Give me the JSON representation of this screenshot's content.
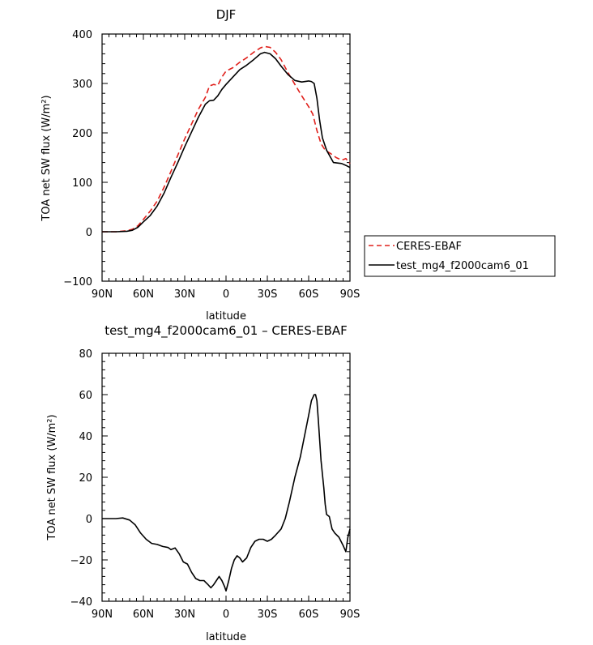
{
  "chart_data": [
    {
      "type": "line",
      "title": "DJF",
      "xlabel": "latitude",
      "ylabel": "TOA net SW flux (W/m²)",
      "ylim": [
        -100,
        400
      ],
      "xlim": [
        -90,
        90
      ],
      "yticks": [
        -100,
        0,
        100,
        200,
        300,
        400
      ],
      "xticks": [
        {
          "v": -90,
          "label": "90N"
        },
        {
          "v": -60,
          "label": "60N"
        },
        {
          "v": -30,
          "label": "30N"
        },
        {
          "v": 0,
          "label": "0"
        },
        {
          "v": 30,
          "label": "30S"
        },
        {
          "v": 60,
          "label": "60S"
        },
        {
          "v": 90,
          "label": "90S"
        }
      ],
      "legend": {
        "position": "right",
        "entries": [
          "CERES-EBAF",
          "test_mg4_f2000cam6_01"
        ]
      },
      "series": [
        {
          "name": "CERES-EBAF",
          "color": "#e0201b",
          "dash": "dashed",
          "points": [
            [
              -90,
              0
            ],
            [
              -80,
              0
            ],
            [
              -72,
              2
            ],
            [
              -68,
              5
            ],
            [
              -64,
              12
            ],
            [
              -60,
              25
            ],
            [
              -55,
              42
            ],
            [
              -50,
              62
            ],
            [
              -45,
              90
            ],
            [
              -40,
              122
            ],
            [
              -35,
              155
            ],
            [
              -30,
              188
            ],
            [
              -25,
              218
            ],
            [
              -20,
              248
            ],
            [
              -15,
              272
            ],
            [
              -12,
              295
            ],
            [
              -9,
              298
            ],
            [
              -6,
              296
            ],
            [
              -3,
              313
            ],
            [
              0,
              325
            ],
            [
              5,
              332
            ],
            [
              10,
              343
            ],
            [
              15,
              352
            ],
            [
              20,
              363
            ],
            [
              25,
              372
            ],
            [
              28,
              375
            ],
            [
              32,
              373
            ],
            [
              36,
              363
            ],
            [
              40,
              348
            ],
            [
              45,
              322
            ],
            [
              50,
              298
            ],
            [
              55,
              275
            ],
            [
              60,
              253
            ],
            [
              63,
              238
            ],
            [
              66,
              205
            ],
            [
              69,
              178
            ],
            [
              72,
              165
            ],
            [
              76,
              158
            ],
            [
              80,
              150
            ],
            [
              84,
              145
            ],
            [
              87,
              148
            ],
            [
              90,
              138
            ]
          ]
        },
        {
          "name": "test_mg4_f2000cam6_01",
          "color": "#000000",
          "dash": "solid",
          "points": [
            [
              -90,
              0
            ],
            [
              -80,
              0
            ],
            [
              -72,
              1
            ],
            [
              -68,
              3
            ],
            [
              -64,
              9
            ],
            [
              -60,
              20
            ],
            [
              -55,
              33
            ],
            [
              -50,
              52
            ],
            [
              -45,
              78
            ],
            [
              -40,
              110
            ],
            [
              -35,
              140
            ],
            [
              -30,
              172
            ],
            [
              -25,
              202
            ],
            [
              -20,
              232
            ],
            [
              -15,
              258
            ],
            [
              -12,
              265
            ],
            [
              -9,
              266
            ],
            [
              -6,
              275
            ],
            [
              -3,
              288
            ],
            [
              0,
              298
            ],
            [
              5,
              313
            ],
            [
              10,
              328
            ],
            [
              15,
              337
            ],
            [
              20,
              348
            ],
            [
              25,
              360
            ],
            [
              28,
              363
            ],
            [
              32,
              360
            ],
            [
              36,
              350
            ],
            [
              40,
              335
            ],
            [
              45,
              318
            ],
            [
              50,
              306
            ],
            [
              55,
              303
            ],
            [
              60,
              305
            ],
            [
              62,
              304
            ],
            [
              64,
              300
            ],
            [
              66,
              270
            ],
            [
              68,
              225
            ],
            [
              70,
              190
            ],
            [
              73,
              165
            ],
            [
              78,
              140
            ],
            [
              84,
              138
            ],
            [
              88,
              133
            ],
            [
              90,
              130
            ]
          ]
        }
      ]
    },
    {
      "type": "line",
      "title": "test_mg4_f2000cam6_01 – CERES-EBAF",
      "xlabel": "latitude",
      "ylabel": "TOA net SW flux (W/m²)",
      "ylim": [
        -40,
        80
      ],
      "xlim": [
        -90,
        90
      ],
      "yticks": [
        -40,
        -20,
        0,
        20,
        40,
        60,
        80
      ],
      "xticks": [
        {
          "v": -90,
          "label": "90N"
        },
        {
          "v": -60,
          "label": "60N"
        },
        {
          "v": -30,
          "label": "30N"
        },
        {
          "v": 0,
          "label": "0"
        },
        {
          "v": 30,
          "label": "30S"
        },
        {
          "v": 60,
          "label": "60S"
        },
        {
          "v": 90,
          "label": "90S"
        }
      ],
      "series": [
        {
          "name": "test_mg4_f2000cam6_01 – CERES-EBAF",
          "color": "#000000",
          "dash": "solid",
          "points": [
            [
              -90,
              0
            ],
            [
              -80,
              0
            ],
            [
              -75,
              0.3
            ],
            [
              -70,
              -0.7
            ],
            [
              -66,
              -3
            ],
            [
              -62,
              -7
            ],
            [
              -58,
              -10
            ],
            [
              -54,
              -12
            ],
            [
              -50,
              -12.5
            ],
            [
              -46,
              -13.5
            ],
            [
              -42,
              -14
            ],
            [
              -40,
              -15
            ],
            [
              -37,
              -14.2
            ],
            [
              -34,
              -17
            ],
            [
              -31,
              -21
            ],
            [
              -28,
              -22
            ],
            [
              -25,
              -26
            ],
            [
              -22,
              -29
            ],
            [
              -19,
              -30
            ],
            [
              -16,
              -30
            ],
            [
              -13,
              -32
            ],
            [
              -11,
              -33.5
            ],
            [
              -9,
              -32
            ],
            [
              -7,
              -30
            ],
            [
              -5,
              -28
            ],
            [
              -3,
              -30
            ],
            [
              -1,
              -33
            ],
            [
              0,
              -35
            ],
            [
              2,
              -30
            ],
            [
              4,
              -24
            ],
            [
              6,
              -20
            ],
            [
              8,
              -18
            ],
            [
              10,
              -19
            ],
            [
              12,
              -21
            ],
            [
              15,
              -19
            ],
            [
              18,
              -14
            ],
            [
              21,
              -11
            ],
            [
              24,
              -10
            ],
            [
              27,
              -10
            ],
            [
              30,
              -11
            ],
            [
              33,
              -10
            ],
            [
              36,
              -8
            ],
            [
              40,
              -5
            ],
            [
              43,
              0
            ],
            [
              46,
              8
            ],
            [
              50,
              20
            ],
            [
              54,
              30
            ],
            [
              57,
              40
            ],
            [
              60,
              50
            ],
            [
              62,
              57
            ],
            [
              64,
              60
            ],
            [
              65,
              60
            ],
            [
              66,
              57
            ],
            [
              67,
              48
            ],
            [
              68,
              38
            ],
            [
              69,
              28
            ],
            [
              71,
              15
            ],
            [
              72,
              7
            ],
            [
              73,
              2
            ],
            [
              75,
              1
            ],
            [
              77,
              -5
            ],
            [
              79,
              -7
            ],
            [
              82,
              -9
            ],
            [
              85,
              -13
            ],
            [
              87,
              -16
            ],
            [
              88.5,
              -9
            ],
            [
              90,
              -5
            ]
          ]
        }
      ]
    }
  ]
}
